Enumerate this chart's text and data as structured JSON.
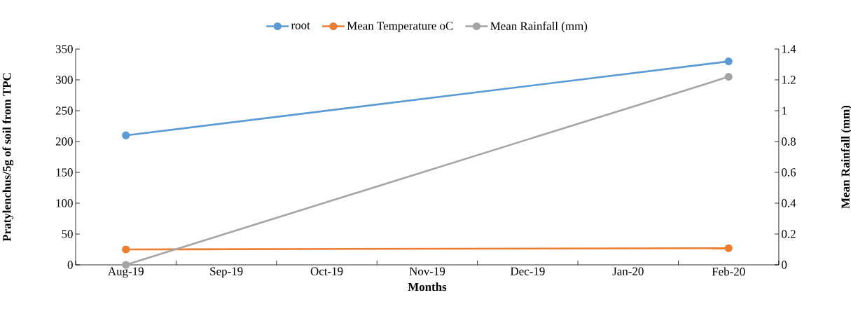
{
  "chart_data": {
    "type": "line",
    "xlabel": "Months",
    "ylabel": "Pratylenchus/5g of soil from TPC",
    "y2label": "Mean Rainfall (mm)",
    "categories": [
      "Aug-19",
      "Sep-19",
      "Oct-19",
      "Nov-19",
      "Dec-19",
      "Jan-20",
      "Feb-20"
    ],
    "series": [
      {
        "name": "root",
        "color": "#5b9bd5",
        "values": [
          210,
          null,
          null,
          null,
          null,
          null,
          330
        ]
      },
      {
        "name": "Mean Temperature oC",
        "color": "#ed7d31",
        "values": [
          25,
          null,
          null,
          null,
          null,
          null,
          27
        ]
      },
      {
        "name": "Mean Rainfall (mm)",
        "color": "#a5a5a5",
        "axis": "y2",
        "values": [
          0,
          null,
          null,
          null,
          null,
          null,
          1.22
        ]
      }
    ],
    "ylim": [
      0,
      350
    ],
    "yticks": [
      0,
      50,
      100,
      150,
      200,
      250,
      300,
      350
    ],
    "y2lim": [
      0,
      1.4
    ],
    "y2ticks": [
      0,
      0.2,
      0.4,
      0.6,
      0.8,
      1,
      1.2,
      1.4
    ],
    "legend": "top",
    "marker": "circle",
    "line_style": "solid",
    "grid": false
  }
}
